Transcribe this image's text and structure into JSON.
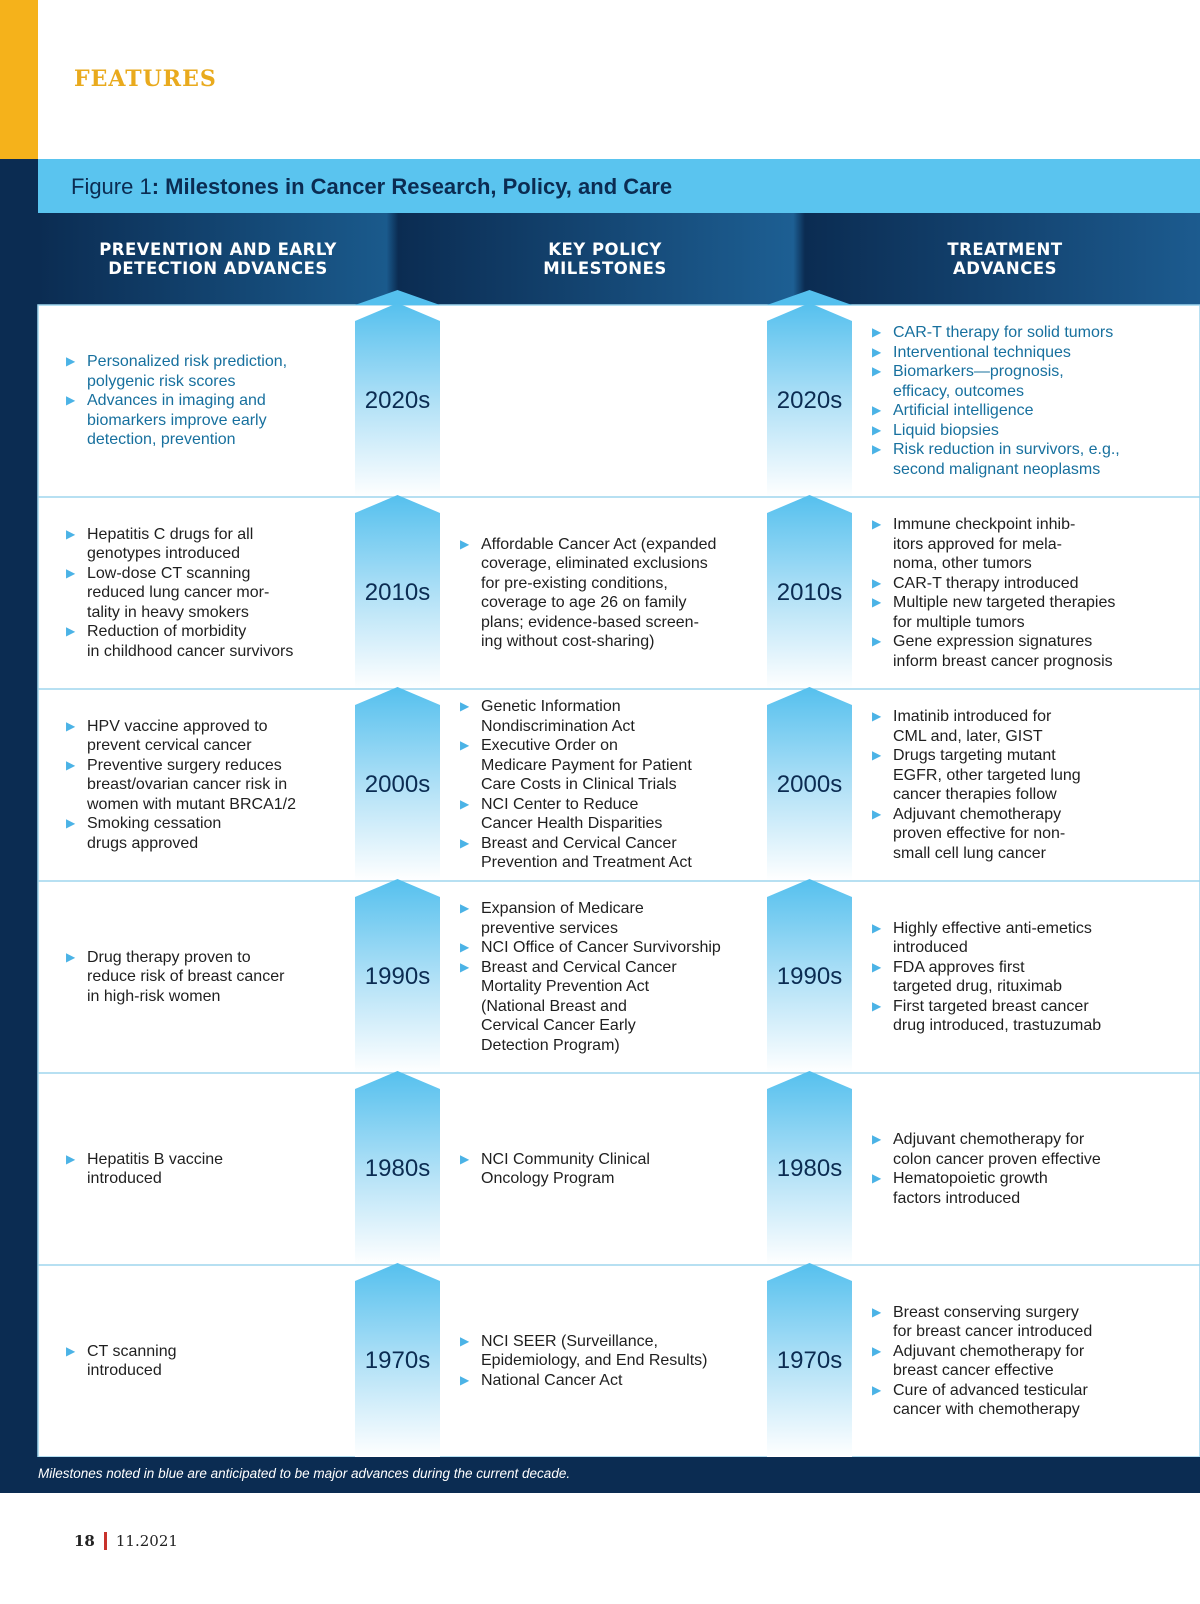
{
  "section_label": "FEATURES",
  "figure_label": "Figure 1",
  "title": ": Milestones in Cancer Research, Policy, and Care",
  "columns": [
    [
      "PREVENTION AND EARLY",
      "DETECTION ADVANCES"
    ],
    [
      "KEY POLICY",
      "MILESTONES"
    ],
    [
      "TREATMENT",
      "ADVANCES"
    ]
  ],
  "rows": [
    {
      "decade": "2020s",
      "anticipated": true,
      "prevention": [
        [
          "Personalized risk prediction,",
          "polygenic risk scores"
        ],
        [
          "Advances in imaging and",
          "biomarkers improve early",
          "detection, prevention"
        ]
      ],
      "policy": [],
      "treatment": [
        [
          "CAR-T therapy for solid tumors"
        ],
        [
          "Interventional techniques"
        ],
        [
          "Biomarkers—prognosis,",
          "efficacy, outcomes"
        ],
        [
          "Artificial intelligence"
        ],
        [
          "Liquid biopsies"
        ],
        [
          "Risk reduction in survivors, e.g.,",
          "second malignant neoplasms"
        ]
      ]
    },
    {
      "decade": "2010s",
      "anticipated": false,
      "prevention": [
        [
          "Hepatitis C drugs for all",
          "genotypes introduced"
        ],
        [
          "Low-dose CT scanning",
          "reduced lung cancer mor-",
          "tality in heavy smokers"
        ],
        [
          "Reduction of morbidity",
          "in childhood cancer survivors"
        ]
      ],
      "policy": [
        [
          "Affordable Cancer Act (expanded",
          "coverage, eliminated exclusions",
          "for pre-existing conditions,",
          "coverage to age 26 on family",
          "plans; evidence-based screen-",
          "ing without cost-sharing)"
        ]
      ],
      "treatment": [
        [
          "Immune checkpoint inhib-",
          "itors approved for mela-",
          "noma, other tumors"
        ],
        [
          "CAR-T therapy introduced"
        ],
        [
          "Multiple new targeted therapies",
          "for multiple tumors"
        ],
        [
          "Gene expression signatures",
          "inform breast cancer prognosis"
        ]
      ]
    },
    {
      "decade": "2000s",
      "anticipated": false,
      "prevention": [
        [
          "HPV vaccine approved to",
          "prevent cervical cancer"
        ],
        [
          "Preventive surgery reduces",
          "breast/ovarian cancer risk in",
          "women with mutant BRCA1/2"
        ],
        [
          "Smoking cessation",
          "drugs approved"
        ]
      ],
      "policy": [
        [
          "Genetic Information",
          "Nondiscrimination Act"
        ],
        [
          "Executive Order on",
          "Medicare Payment for Patient",
          "Care Costs in Clinical Trials"
        ],
        [
          "NCI Center to Reduce",
          "Cancer Health Disparities"
        ],
        [
          "Breast and Cervical Cancer",
          "Prevention and Treatment Act"
        ]
      ],
      "treatment": [
        [
          "Imatinib introduced for",
          "CML and, later, GIST"
        ],
        [
          "Drugs targeting mutant",
          "EGFR, other targeted lung",
          "cancer therapies follow"
        ],
        [
          "Adjuvant chemotherapy",
          "proven effective for non-",
          "small cell lung cancer"
        ]
      ]
    },
    {
      "decade": "1990s",
      "anticipated": false,
      "prevention": [
        [
          "Drug therapy proven to",
          "reduce risk of breast cancer",
          "in high-risk women"
        ]
      ],
      "policy": [
        [
          "Expansion of Medicare",
          "preventive services"
        ],
        [
          "NCI Office of Cancer Survivorship"
        ],
        [
          "Breast and Cervical Cancer",
          "Mortality Prevention Act",
          "(National Breast and",
          "Cervical Cancer Early",
          "Detection Program)"
        ]
      ],
      "treatment": [
        [
          "Highly effective anti-emetics",
          "introduced"
        ],
        [
          "FDA approves first",
          "targeted drug, rituximab"
        ],
        [
          "First targeted breast cancer",
          "drug introduced, trastuzumab"
        ]
      ]
    },
    {
      "decade": "1980s",
      "anticipated": false,
      "prevention": [
        [
          "Hepatitis B vaccine",
          "introduced"
        ]
      ],
      "policy": [
        [
          "NCI Community Clinical",
          "Oncology Program"
        ]
      ],
      "treatment": [
        [
          "Adjuvant chemotherapy for",
          "colon cancer proven effective"
        ],
        [
          "Hematopoietic growth",
          "factors introduced"
        ]
      ]
    },
    {
      "decade": "1970s",
      "anticipated": false,
      "prevention": [
        [
          "CT scanning",
          "introduced"
        ]
      ],
      "policy": [
        [
          "NCI SEER (Surveillance,",
          "Epidemiology, and End Results)"
        ],
        [
          "National Cancer Act"
        ]
      ],
      "treatment": [
        [
          "Breast conserving surgery",
          "for breast cancer introduced"
        ],
        [
          "Adjuvant chemotherapy for",
          "breast cancer effective"
        ],
        [
          "Cure of advanced testicular",
          "cancer with chemotherapy"
        ]
      ]
    }
  ],
  "footnote": "Milestones noted in blue are anticipated to be major advances during the current decade.",
  "page_number": "18",
  "issue_date": "11.2021"
}
